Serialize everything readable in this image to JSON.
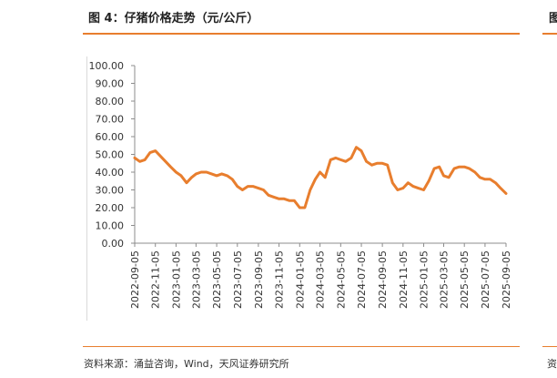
{
  "header": {
    "title": "图 4：仔猪价格走势（元/公斤）",
    "title_right_fragment": "图"
  },
  "footer": {
    "source": "资料来源：涌益咨询，Wind，天风证券研究所",
    "source_right_fragment": "资"
  },
  "colors": {
    "accent": "#e87e2e",
    "line": "#e87e2e"
  },
  "chart_data": {
    "type": "line",
    "title": "仔猪价格走势（元/公斤）",
    "xlabel": "",
    "ylabel": "",
    "ylim": [
      0,
      100
    ],
    "y_ticks": [
      "0.00",
      "10.00",
      "20.00",
      "30.00",
      "40.00",
      "50.00",
      "60.00",
      "70.00",
      "80.00",
      "90.00",
      "100.00"
    ],
    "x_ticks": [
      "2022-09-05",
      "2022-11-05",
      "2023-01-05",
      "2023-03-05",
      "2023-05-05",
      "2023-07-05",
      "2023-09-05",
      "2023-11-05",
      "2024-01-05",
      "2024-03-05",
      "2024-05-05",
      "2024-07-05",
      "2024-09-05",
      "2024-11-05",
      "2025-01-05",
      "2025-03-05",
      "2025-05-05",
      "2025-07-05",
      "2025-09-05"
    ],
    "series": [
      {
        "name": "仔猪价格",
        "x": [
          "2022-09-05",
          "2022-09-20",
          "2022-10-05",
          "2022-10-20",
          "2022-11-05",
          "2022-11-20",
          "2022-12-05",
          "2022-12-20",
          "2023-01-05",
          "2023-01-20",
          "2023-02-05",
          "2023-02-20",
          "2023-03-05",
          "2023-03-20",
          "2023-04-05",
          "2023-04-20",
          "2023-05-05",
          "2023-05-20",
          "2023-06-05",
          "2023-06-20",
          "2023-07-05",
          "2023-07-20",
          "2023-08-05",
          "2023-08-20",
          "2023-09-05",
          "2023-09-20",
          "2023-10-05",
          "2023-10-20",
          "2023-11-05",
          "2023-11-20",
          "2023-12-05",
          "2023-12-20",
          "2024-01-05",
          "2024-01-20",
          "2024-02-05",
          "2024-02-20",
          "2024-03-05",
          "2024-03-20",
          "2024-04-05",
          "2024-04-20",
          "2024-05-05",
          "2024-05-20",
          "2024-06-05",
          "2024-06-20",
          "2024-07-05",
          "2024-07-20",
          "2024-08-05",
          "2024-08-20",
          "2024-09-05",
          "2024-09-20",
          "2024-10-05",
          "2024-10-20",
          "2024-11-05",
          "2024-11-20",
          "2024-12-05",
          "2024-12-20",
          "2025-01-05",
          "2025-01-20",
          "2025-02-05",
          "2025-02-20",
          "2025-03-05",
          "2025-03-20",
          "2025-04-05",
          "2025-04-20",
          "2025-05-05",
          "2025-05-20",
          "2025-06-05",
          "2025-06-20",
          "2025-07-05",
          "2025-07-20",
          "2025-08-05",
          "2025-08-20",
          "2025-09-05"
        ],
        "values": [
          48,
          46,
          47,
          51,
          52,
          49,
          46,
          43,
          40,
          38,
          34,
          37,
          39,
          40,
          40,
          39,
          38,
          39,
          38,
          36,
          32,
          30,
          32,
          32,
          31,
          30,
          27,
          26,
          25,
          25,
          24,
          24,
          20,
          20,
          30,
          36,
          40,
          37,
          47,
          48,
          47,
          46,
          48,
          54,
          52,
          46,
          44,
          45,
          45,
          44,
          34,
          30,
          31,
          34,
          32,
          31,
          30,
          35,
          42,
          43,
          38,
          37,
          42,
          43,
          43,
          42,
          40,
          37,
          36,
          36,
          34,
          31,
          28
        ]
      }
    ]
  }
}
